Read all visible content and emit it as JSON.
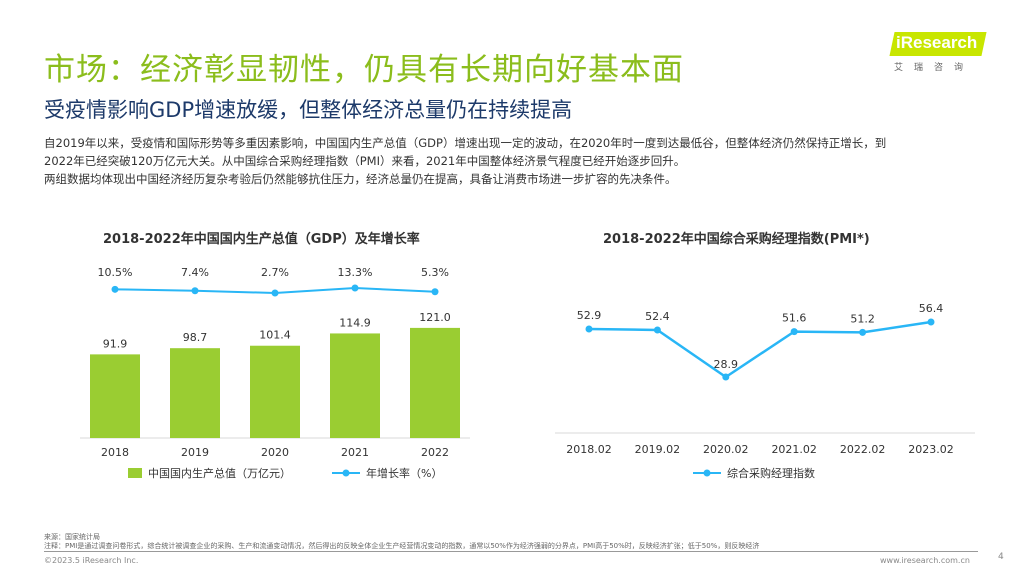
{
  "title": "市场：经济彰显韧性，仍具有长期向好基本面",
  "subtitle": "受疫情影响GDP增速放缓，但整体经济总量仍在持续提高",
  "intro": [
    "自2019年以来，受疫情和国际形势等多重因素影响，中国国内生产总值（GDP）增速出现一定的波动，在2020年时一度到达最低谷，但整体经济仍然保持正增长，到",
    "2022年已经突破120万亿元大关。从中国综合采购经理指数（PMI）来看，2021年中国整体经济景气程度已经开始逐步回升。",
    "两组数据均体现出中国经济经历复杂考验后仍然能够抗住压力，经济总量仍在提高，具备让消费市场进一步扩容的先决条件。"
  ],
  "logo": {
    "text": "iResearch",
    "cn": "艾瑞咨询"
  },
  "colors": {
    "bar": "#9acd32",
    "line": "#29b6f6",
    "title": "#8bbd1c",
    "subtitle": "#1d3a6a"
  },
  "chart_data": [
    {
      "type": "bar",
      "title": "2018-2022年中国国内生产总值（GDP）及年增长率",
      "categories": [
        "2018",
        "2019",
        "2020",
        "2021",
        "2022"
      ],
      "series": [
        {
          "name": "中国国内生产总值（万亿元）",
          "type": "bar",
          "values": [
            91.9,
            98.7,
            101.4,
            114.9,
            121.0
          ],
          "labels": [
            "91.9",
            "98.7",
            "101.4",
            "114.9",
            "121.0"
          ]
        },
        {
          "name": "年增长率（%）",
          "type": "line",
          "values": [
            10.5,
            7.4,
            2.7,
            13.3,
            5.3
          ],
          "labels": [
            "10.5%",
            "7.4%",
            "2.7%",
            "13.3%",
            "5.3%"
          ]
        }
      ]
    },
    {
      "type": "line",
      "title": "2018-2022年中国综合采购经理指数(PMI*)",
      "categories": [
        "2018.02",
        "2019.02",
        "2020.02",
        "2021.02",
        "2022.02",
        "2023.02"
      ],
      "series": [
        {
          "name": "综合采购经理指数",
          "values": [
            52.9,
            52.4,
            28.9,
            51.6,
            51.2,
            56.4
          ],
          "labels": [
            "52.9",
            "52.4",
            "28.9",
            "51.6",
            "51.2",
            "56.4"
          ]
        }
      ]
    }
  ],
  "footer": {
    "source": "来源：国家统计局",
    "note": "注释：PMI是通过调查问卷形式，综合统计被调查企业的采购、生产和流通变动情况，然后得出的反映全体企业生产经营情况变动的指数，通常以50%作为经济强弱的分界点，PMI高于50%时，反映经济扩张；低于50%，则反映经济",
    "copyright": "©2023.5 iResearch Inc.",
    "url": "www.iresearch.com.cn",
    "page": "4"
  }
}
